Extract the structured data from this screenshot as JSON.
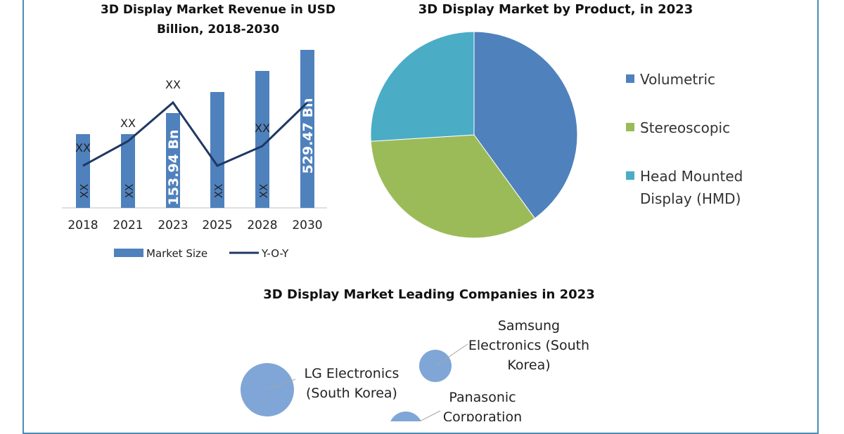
{
  "colors": {
    "frame": "#4a8bb5",
    "bar": "#4f81bd",
    "yoy_line": "#1f3864",
    "volumetric": "#4f81bd",
    "stereoscopic": "#9bbb59",
    "hmd": "#4bacc6",
    "bubble": "#7fa6d6"
  },
  "chart_data": [
    {
      "type": "bar",
      "title": "3D Display Market Revenue in USD Billion, 2018-2030",
      "categories": [
        "2018",
        "2021",
        "2023",
        "2025",
        "2028",
        "2030"
      ],
      "series": [
        {
          "name": "Market Size",
          "values": [
            105,
            105,
            135,
            165,
            195,
            225
          ],
          "labels": [
            "XX",
            "XX",
            "153.94 Bn",
            "XX",
            "XX",
            "529.47 Bn"
          ]
        },
        {
          "name": "Y-O-Y",
          "values": [
            60,
            95,
            150,
            60,
            88,
            150
          ],
          "labels": [
            "XX",
            "XX",
            "XX",
            "",
            "XX",
            ""
          ]
        }
      ],
      "legend_position": "bottom",
      "grid": false
    },
    {
      "type": "pie",
      "title": "3D Display Market by Product, in 2023",
      "labels": [
        "Volumetric",
        "Stereoscopic",
        "Head Mounted Display (HMD)"
      ],
      "values": [
        40,
        34,
        26
      ],
      "legend_position": "right"
    },
    {
      "type": "scatter",
      "title": "3D Display Market Leading Companies in 2023",
      "points": [
        {
          "name": "Samsung Electronics (South Korea)",
          "size": 23
        },
        {
          "name": "LG Electronics (South Korea)",
          "size": 38
        },
        {
          "name": "Panasonic Corporation",
          "size": 24
        }
      ]
    }
  ]
}
